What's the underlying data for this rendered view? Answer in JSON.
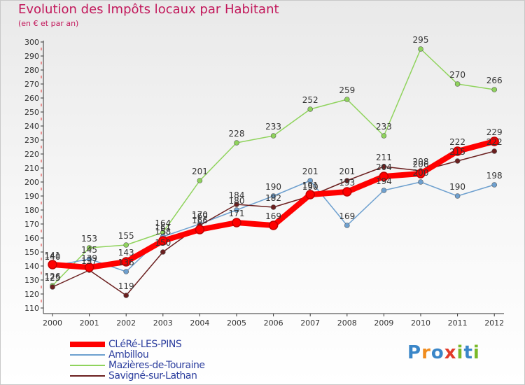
{
  "header": {
    "title": "Evolution des Impôts locaux par Habitant",
    "subtitle": "(en € et par an)"
  },
  "chart_data": {
    "type": "line",
    "title": "Evolution des Impôts locaux par Habitant",
    "subtitle": "(en € et par an)",
    "xlabel": "",
    "ylabel": "",
    "x": [
      2000,
      2001,
      2002,
      2003,
      2004,
      2005,
      2006,
      2007,
      2008,
      2009,
      2010,
      2011,
      2012
    ],
    "ylim": [
      110,
      300
    ],
    "yticks": [
      110,
      120,
      130,
      140,
      150,
      160,
      170,
      180,
      190,
      200,
      210,
      220,
      230,
      240,
      250,
      260,
      270,
      280,
      290,
      300
    ],
    "grid": false,
    "series": [
      {
        "name": "CLéRé-LES-PINS",
        "color": "#ff0000",
        "values": [
          141,
          139,
          143,
          158,
          166,
          171,
          169,
          191,
          193,
          204,
          206,
          222,
          229
        ]
      },
      {
        "name": "Ambillou",
        "color": "#6ea0cf",
        "values": [
          140,
          145,
          136,
          161,
          170,
          180,
          190,
          201,
          169,
          194,
          200,
          190,
          198
        ]
      },
      {
        "name": "Mazières-de-Touraine",
        "color": "#8fd35c",
        "values": [
          126,
          153,
          155,
          164,
          201,
          228,
          233,
          252,
          259,
          233,
          295,
          270,
          266
        ]
      },
      {
        "name": "Savigné-sur-Lathan",
        "color": "#6b1f1f",
        "values": [
          125,
          137,
          119,
          150,
          169,
          184,
          182,
          190,
          201,
          211,
          208,
          215,
          222
        ]
      }
    ]
  },
  "logo": {
    "parts": [
      "P",
      "r",
      "o",
      "x",
      "i",
      "t",
      "i"
    ]
  }
}
